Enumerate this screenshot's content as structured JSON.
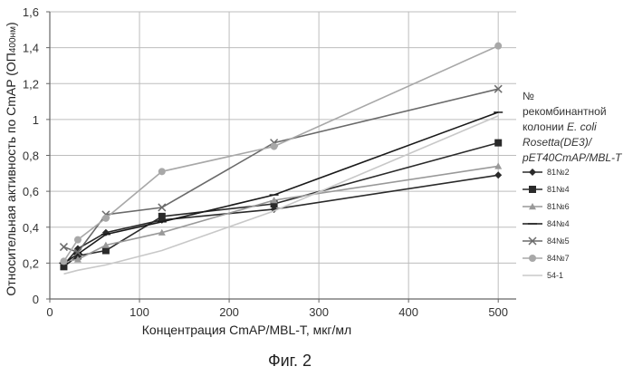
{
  "chart_data": {
    "type": "line",
    "xlabel": "Концентрация CmAP/MBL-T, мкг/мл",
    "ylabel": "Относительная активность по CmAP (ОП",
    "ylabel_sub": "400нм",
    "ylabel_close": ")",
    "xlim": [
      0,
      520
    ],
    "ylim": [
      0,
      1.6
    ],
    "xticks": [
      0,
      100,
      200,
      300,
      400,
      500
    ],
    "yticks": [
      0,
      0.2,
      0.4,
      0.6,
      0.8,
      1,
      1.2,
      1.4,
      1.6
    ],
    "xtick_labels": [
      "0",
      "100",
      "200",
      "300",
      "400",
      "500"
    ],
    "ytick_labels": [
      "0",
      "0,2",
      "0,4",
      "0,6",
      "0,8",
      "1",
      "1,2",
      "1,4",
      "1,6"
    ],
    "grid": {
      "x_major": true,
      "x_every": 100,
      "y_major": true
    },
    "legend": {
      "placement": "right",
      "title_lines": [
        {
          "text": "№",
          "italic": false
        },
        {
          "text": "рекомбинантной",
          "italic": false
        },
        {
          "text": "колонии ",
          "italic": false,
          "tail": "E. coli",
          "tail_italic": true
        },
        {
          "text": "Rosetta(DE3)/",
          "italic": true
        },
        {
          "text": "pET40CmAP/MBL-T",
          "italic": true
        }
      ]
    },
    "series": [
      {
        "name": "81№2",
        "color": "#2a2a2a",
        "marker": "diamond",
        "x": [
          15.6,
          31.25,
          62.5,
          125,
          250,
          500
        ],
        "y": [
          0.19,
          0.28,
          0.37,
          0.44,
          0.5,
          0.69
        ]
      },
      {
        "name": "81№4",
        "color": "#2a2a2a",
        "marker": "square",
        "x": [
          15.6,
          31.25,
          62.5,
          125,
          250,
          500
        ],
        "y": [
          0.18,
          0.24,
          0.27,
          0.46,
          0.53,
          0.87
        ]
      },
      {
        "name": "81№6",
        "color": "#999999",
        "marker": "triangle",
        "x": [
          15.6,
          31.25,
          62.5,
          125,
          250,
          500
        ],
        "y": [
          0.21,
          0.22,
          0.3,
          0.37,
          0.55,
          0.74
        ]
      },
      {
        "name": "84№4",
        "color": "#1a1a1a",
        "marker": "cross",
        "x": [
          15.6,
          31.25,
          62.5,
          125,
          250,
          500
        ],
        "y": [
          0.2,
          0.25,
          0.36,
          0.43,
          0.58,
          1.04
        ]
      },
      {
        "name": "84№5",
        "color": "#6a6a6a",
        "marker": "x",
        "x": [
          15.6,
          31.25,
          62.5,
          125,
          250,
          500
        ],
        "y": [
          0.29,
          0.26,
          0.47,
          0.51,
          0.87,
          1.17
        ]
      },
      {
        "name": "84№7",
        "color": "#a8a8a8",
        "marker": "circle",
        "x": [
          15.6,
          31.25,
          62.5,
          125,
          250,
          500
        ],
        "y": [
          0.21,
          0.33,
          0.45,
          0.71,
          0.85,
          1.41
        ]
      },
      {
        "name": "54-1",
        "color": "#c8c8c8",
        "marker": "none",
        "x": [
          15.6,
          31.25,
          62.5,
          125,
          250,
          500
        ],
        "y": [
          0.14,
          0.16,
          0.19,
          0.27,
          0.49,
          1.02
        ]
      }
    ]
  },
  "caption": "Фиг. 2"
}
